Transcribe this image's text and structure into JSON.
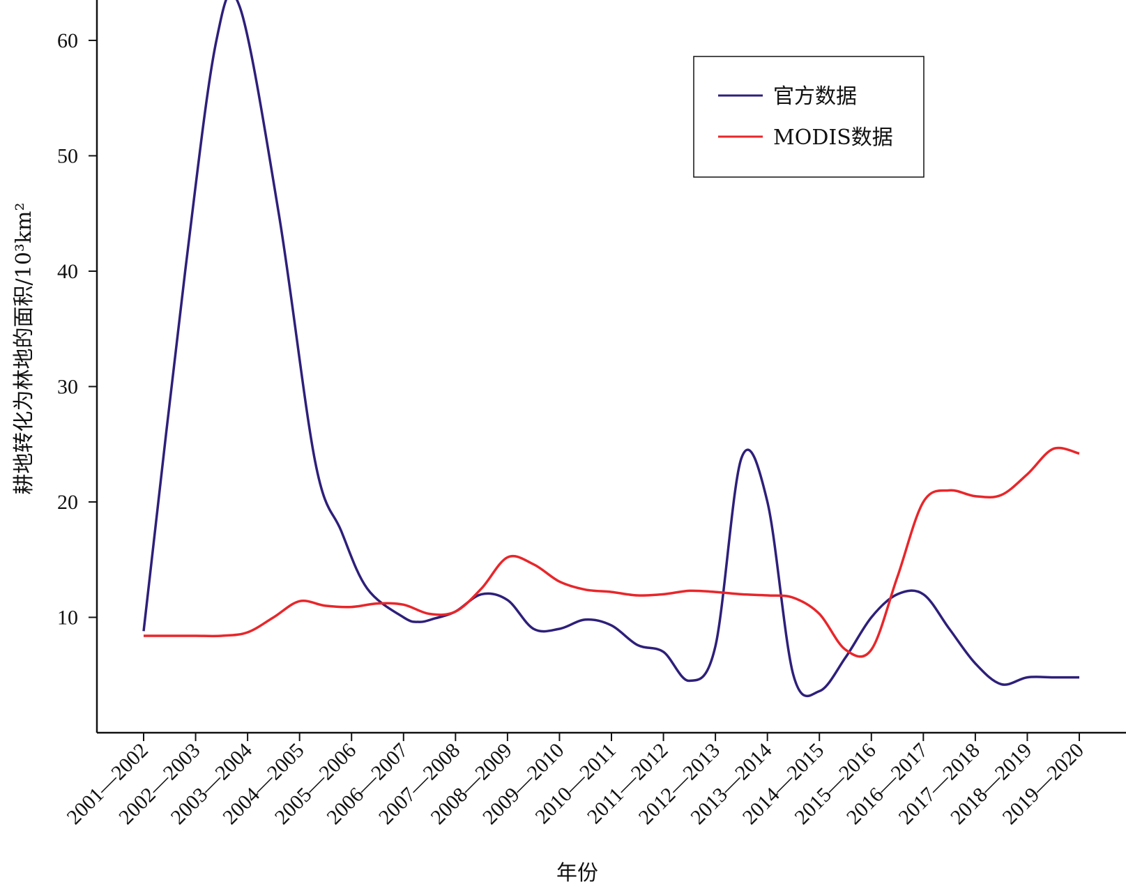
{
  "chart_data": {
    "type": "line",
    "xlabel": "年份",
    "ylabel": "耕地转化为林地的面积/10³km²",
    "categories": [
      "2001—2002",
      "2002—2003",
      "2003—2004",
      "2004—2005",
      "2005—2006",
      "2006—2007",
      "2007—2008",
      "2008—2009",
      "2009—2010",
      "2010—2011",
      "2011—2012",
      "2012—2013",
      "2013—2014",
      "2014—2015",
      "2015—2016",
      "2016—2017",
      "2017—2018",
      "2018—2019",
      "2019—2020"
    ],
    "ylim": [
      0,
      63.5
    ],
    "yticks": [
      10,
      20,
      30,
      40,
      50,
      60
    ],
    "grid": false,
    "legend_position": "top-right",
    "series": [
      {
        "name": "官方数据",
        "color": "#2e1f7a",
        "x": [
          0,
          0.8,
          1.4,
          1.85,
          2.6,
          3.3,
          3.8,
          4.3,
          5.0,
          5.3,
          5.6,
          6.0,
          6.5,
          7.0,
          7.5,
          8.0,
          8.5,
          9.0,
          9.5,
          10.0,
          10.5,
          11.0,
          11.5,
          12.0,
          12.5,
          13.0,
          13.5,
          14.0,
          14.5,
          15.0,
          15.5,
          16.0,
          16.5,
          17.0,
          17.5,
          18.0
        ],
        "y": [
          8.8,
          40.0,
          60.0,
          62.9,
          45.0,
          23.5,
          17.5,
          12.5,
          10.0,
          9.6,
          9.9,
          10.5,
          12.0,
          11.5,
          9.0,
          9.0,
          9.8,
          9.3,
          7.6,
          7.0,
          4.5,
          7.5,
          23.8,
          20.0,
          5.0,
          3.6,
          6.5,
          10.0,
          12.0,
          12.0,
          9.0,
          6.0,
          4.2,
          4.8,
          4.8,
          4.8
        ]
      },
      {
        "name": "MODIS数据",
        "color": "#e8262a",
        "x": [
          0,
          0.5,
          1.0,
          1.5,
          2.0,
          2.5,
          3.0,
          3.5,
          4.0,
          4.5,
          5.0,
          5.5,
          6.0,
          6.5,
          7.0,
          7.5,
          8.0,
          8.5,
          9.0,
          9.5,
          10.0,
          10.5,
          11.0,
          11.5,
          12.0,
          12.5,
          13.0,
          13.5,
          14.0,
          14.5,
          15.0,
          15.5,
          16.0,
          16.5,
          17.0,
          17.5,
          18.0
        ],
        "y": [
          8.4,
          8.4,
          8.4,
          8.4,
          8.7,
          10.0,
          11.4,
          11.0,
          10.9,
          11.2,
          11.1,
          10.3,
          10.5,
          12.5,
          15.2,
          14.6,
          13.1,
          12.4,
          12.2,
          11.9,
          12.0,
          12.3,
          12.2,
          12.0,
          11.9,
          11.7,
          10.3,
          7.2,
          7.2,
          13.5,
          20.0,
          21.0,
          20.5,
          20.6,
          22.4,
          24.6,
          24.2
        ]
      }
    ]
  }
}
